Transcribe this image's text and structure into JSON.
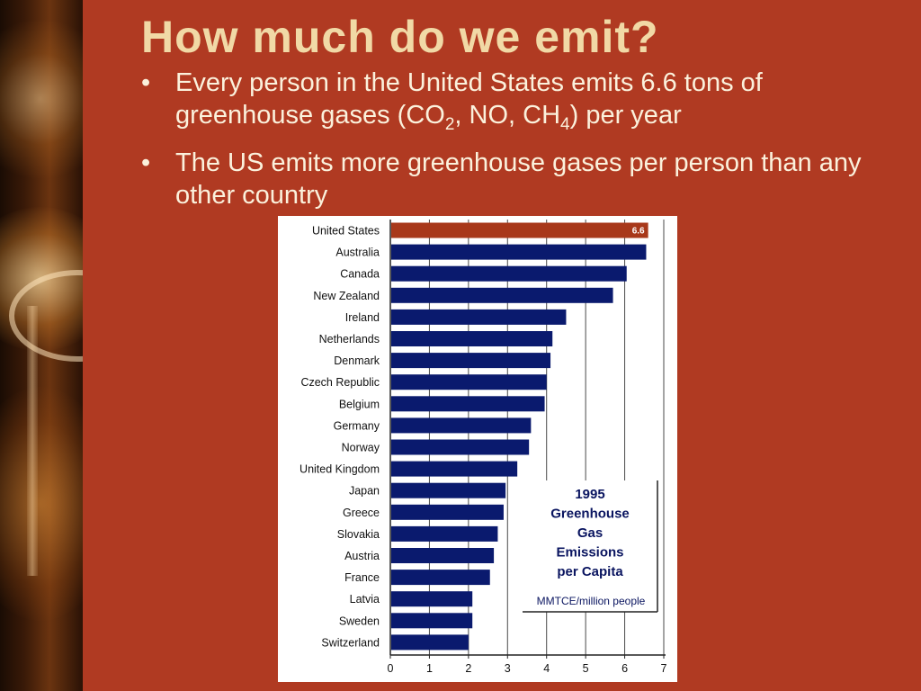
{
  "slide": {
    "title": "How much do we emit?",
    "bullet_marker": "•",
    "bullet1": {
      "text_a": "Every person in the United States emits 6.6 tons of greenhouse gases (CO",
      "sub_a": "2",
      "text_b": ", NO, CH",
      "sub_b": "4",
      "text_c": ") per year"
    },
    "bullet2": "The US emits more greenhouse gases per person than any other country"
  },
  "colors": {
    "background": "#b03a22",
    "title": "#f1d9a6",
    "highlight_bar": "#a8381a",
    "bar": "#0a1a6e"
  },
  "chart_data": {
    "type": "bar",
    "orientation": "horizontal",
    "title_lines": [
      "1995",
      "Greenhouse",
      "Gas",
      "Emissions",
      "per Capita"
    ],
    "units": "MMTCE/million people",
    "categories": [
      "United States",
      "Australia",
      "Canada",
      "New Zealand",
      "Ireland",
      "Netherlands",
      "Denmark",
      "Czech Republic",
      "Belgium",
      "Germany",
      "Norway",
      "United Kingdom",
      "Japan",
      "Greece",
      "Slovakia",
      "Austria",
      "France",
      "Latvia",
      "Sweden",
      "Switzerland"
    ],
    "values": [
      6.6,
      6.55,
      6.05,
      5.7,
      4.5,
      4.15,
      4.1,
      4.0,
      3.95,
      3.6,
      3.55,
      3.25,
      2.95,
      2.9,
      2.75,
      2.65,
      2.55,
      2.1,
      2.1,
      2.0
    ],
    "highlight_index": 0,
    "data_labels": [
      {
        "index": 0,
        "text": "6.6"
      }
    ],
    "xlim": [
      0,
      7
    ],
    "xticks": [
      0,
      1,
      2,
      3,
      4,
      5,
      6,
      7
    ],
    "grid": true
  }
}
